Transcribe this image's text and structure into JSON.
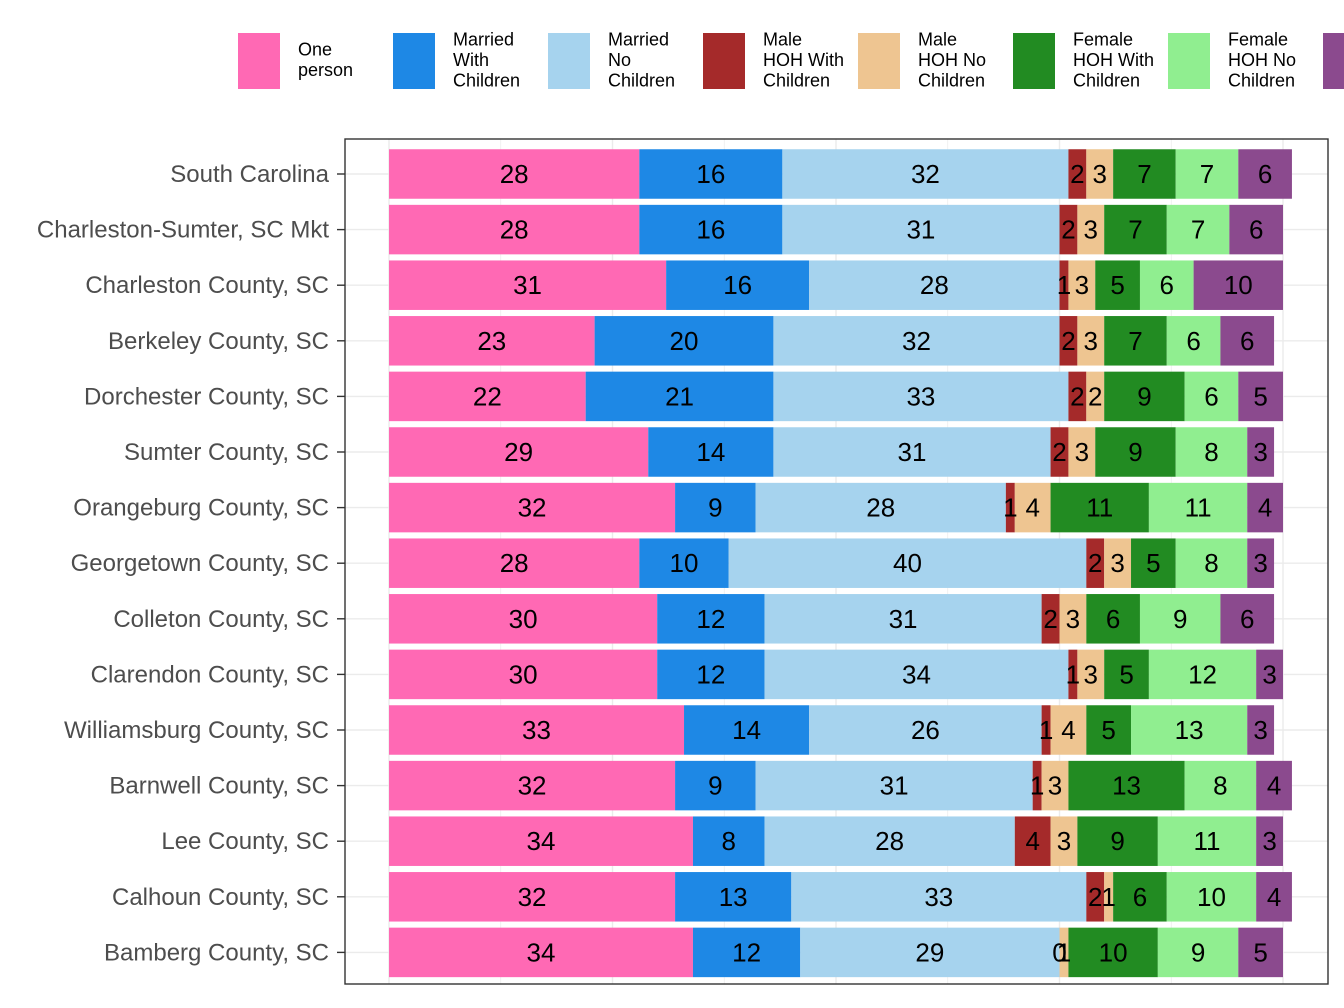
{
  "chart_data": {
    "type": "bar",
    "orientation": "horizontal",
    "stacked": true,
    "categories": [
      "South Carolina",
      "Charleston-Sumter, SC Mkt",
      "Charleston County, SC",
      "Berkeley County, SC",
      "Dorchester County, SC",
      "Sumter County, SC",
      "Orangeburg County, SC",
      "Georgetown County, SC",
      "Colleton County, SC",
      "Clarendon County, SC",
      "Williamsburg County, SC",
      "Barnwell County, SC",
      "Lee County, SC",
      "Calhoun County, SC",
      "Bamberg County, SC"
    ],
    "series": [
      {
        "name": "One person",
        "legend_lines": [
          "One",
          "person"
        ],
        "color": "#FF69B4",
        "values": [
          28,
          28,
          31,
          23,
          22,
          29,
          32,
          28,
          30,
          30,
          33,
          32,
          34,
          32,
          34
        ]
      },
      {
        "name": "Married With Children",
        "legend_lines": [
          "Married",
          "With",
          "Children"
        ],
        "color": "#1E88E5",
        "values": [
          16,
          16,
          16,
          20,
          21,
          14,
          9,
          10,
          12,
          12,
          14,
          9,
          8,
          13,
          12
        ]
      },
      {
        "name": "Married No Children",
        "legend_lines": [
          "Married",
          "No",
          "Children"
        ],
        "color": "#A6D3EE",
        "values": [
          32,
          31,
          28,
          32,
          33,
          31,
          28,
          40,
          31,
          34,
          26,
          31,
          28,
          33,
          29
        ]
      },
      {
        "name": "Male HOH With Children",
        "legend_lines": [
          "Male",
          "HOH With",
          "Children"
        ],
        "color": "#A52A2A",
        "values": [
          2,
          2,
          1,
          2,
          2,
          2,
          1,
          2,
          2,
          1,
          1,
          1,
          4,
          2,
          0
        ]
      },
      {
        "name": "Male HOH No Children",
        "legend_lines": [
          "Male",
          "HOH No",
          "Children"
        ],
        "color": "#EEC591",
        "values": [
          3,
          3,
          3,
          3,
          2,
          3,
          4,
          3,
          3,
          3,
          4,
          3,
          3,
          1,
          1
        ]
      },
      {
        "name": "Female HOH With Children",
        "legend_lines": [
          "Female",
          "HOH With",
          "Children"
        ],
        "color": "#228B22",
        "values": [
          7,
          7,
          5,
          7,
          9,
          9,
          11,
          5,
          6,
          5,
          5,
          13,
          9,
          6,
          10
        ]
      },
      {
        "name": "Female HOH No Children",
        "legend_lines": [
          "Female",
          "HOH No",
          "Children"
        ],
        "color": "#90EE90",
        "values": [
          7,
          7,
          6,
          6,
          6,
          8,
          11,
          8,
          9,
          12,
          13,
          8,
          11,
          10,
          9
        ]
      },
      {
        "name": "",
        "legend_lines": [],
        "color": "#8B4A8E",
        "values": [
          6,
          6,
          10,
          6,
          5,
          3,
          4,
          3,
          6,
          3,
          3,
          4,
          3,
          4,
          5
        ]
      }
    ],
    "xlim": [
      0,
      100
    ],
    "title": "",
    "xlabel": "",
    "ylabel": "",
    "grid": true,
    "legend_position": "top"
  }
}
